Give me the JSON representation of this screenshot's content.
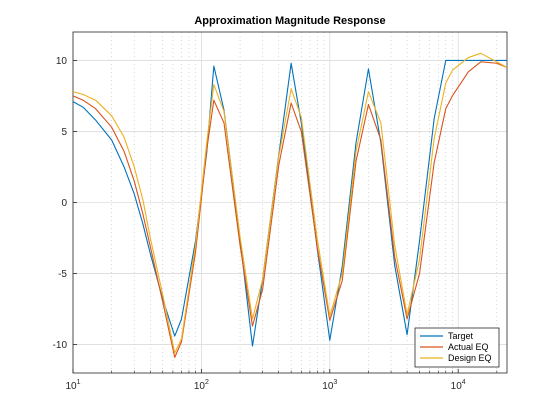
{
  "chart_data": {
    "type": "line",
    "title": "Approximation Magnitude Response",
    "xlabel": "",
    "ylabel": "",
    "xscale": "log",
    "xlim": [
      10,
      24000
    ],
    "ylim": [
      -12,
      12
    ],
    "grid": true,
    "legend_position": "bottom-right",
    "x_ticks": [
      {
        "value": 10,
        "base": "10",
        "exp": "1"
      },
      {
        "value": 100,
        "base": "10",
        "exp": "2"
      },
      {
        "value": 1000,
        "base": "10",
        "exp": "3"
      },
      {
        "value": 10000,
        "base": "10",
        "exp": "4"
      }
    ],
    "y_ticks": [
      {
        "value": -10,
        "label": "-10"
      },
      {
        "value": -5,
        "label": "-5"
      },
      {
        "value": 0,
        "label": "0"
      },
      {
        "value": 5,
        "label": "5"
      },
      {
        "value": 10,
        "label": "10"
      }
    ],
    "series": [
      {
        "name": "Target",
        "color": "#0072BD",
        "points": [
          [
            10,
            7.1
          ],
          [
            12,
            6.7
          ],
          [
            15,
            5.8
          ],
          [
            20,
            4.4
          ],
          [
            25,
            2.5
          ],
          [
            30,
            0.6
          ],
          [
            35,
            -1.5
          ],
          [
            40,
            -3.6
          ],
          [
            50,
            -6.8
          ],
          [
            62,
            -9.4
          ],
          [
            70,
            -8.2
          ],
          [
            90,
            -2.7
          ],
          [
            110,
            3.5
          ],
          [
            125,
            9.6
          ],
          [
            150,
            6.5
          ],
          [
            200,
            -2.6
          ],
          [
            250,
            -10.1
          ],
          [
            300,
            -5.4
          ],
          [
            400,
            3.3
          ],
          [
            500,
            9.8
          ],
          [
            600,
            5.6
          ],
          [
            800,
            -3.3
          ],
          [
            1000,
            -9.7
          ],
          [
            1250,
            -4.5
          ],
          [
            1600,
            4.2
          ],
          [
            2000,
            9.4
          ],
          [
            2500,
            4.2
          ],
          [
            3200,
            -4.4
          ],
          [
            4000,
            -9.3
          ],
          [
            5000,
            -2.7
          ],
          [
            6500,
            5.9
          ],
          [
            8000,
            10.0
          ],
          [
            9000,
            10.0
          ],
          [
            12000,
            10.0
          ],
          [
            15000,
            10.0
          ],
          [
            20000,
            10.0
          ],
          [
            24000,
            10.0
          ]
        ]
      },
      {
        "name": "Actual EQ",
        "color": "#D95319",
        "points": [
          [
            10,
            7.5
          ],
          [
            12,
            7.2
          ],
          [
            15,
            6.6
          ],
          [
            20,
            5.3
          ],
          [
            25,
            3.6
          ],
          [
            30,
            1.5
          ],
          [
            35,
            -0.8
          ],
          [
            40,
            -3.1
          ],
          [
            50,
            -7.0
          ],
          [
            62,
            -10.9
          ],
          [
            70,
            -9.8
          ],
          [
            90,
            -3.5
          ],
          [
            110,
            3.7
          ],
          [
            125,
            7.2
          ],
          [
            150,
            5.6
          ],
          [
            200,
            -3.0
          ],
          [
            250,
            -8.7
          ],
          [
            300,
            -6.1
          ],
          [
            400,
            2.6
          ],
          [
            500,
            7.0
          ],
          [
            600,
            5.0
          ],
          [
            800,
            -3.2
          ],
          [
            1000,
            -8.3
          ],
          [
            1250,
            -5.5
          ],
          [
            1600,
            2.9
          ],
          [
            2000,
            6.9
          ],
          [
            2500,
            4.4
          ],
          [
            3200,
            -3.8
          ],
          [
            4000,
            -8.2
          ],
          [
            5000,
            -5.0
          ],
          [
            6500,
            2.8
          ],
          [
            8000,
            6.6
          ],
          [
            9000,
            7.5
          ],
          [
            12000,
            9.2
          ],
          [
            15000,
            9.9
          ],
          [
            20000,
            9.8
          ],
          [
            24000,
            9.5
          ]
        ]
      },
      {
        "name": "Design EQ",
        "color": "#EDB120",
        "points": [
          [
            10,
            7.8
          ],
          [
            12,
            7.6
          ],
          [
            15,
            7.2
          ],
          [
            20,
            6.1
          ],
          [
            25,
            4.6
          ],
          [
            30,
            2.5
          ],
          [
            35,
            0.2
          ],
          [
            40,
            -2.5
          ],
          [
            50,
            -6.5
          ],
          [
            62,
            -10.6
          ],
          [
            70,
            -9.6
          ],
          [
            90,
            -3.0
          ],
          [
            110,
            4.2
          ],
          [
            125,
            8.3
          ],
          [
            150,
            6.4
          ],
          [
            200,
            -2.4
          ],
          [
            250,
            -8.2
          ],
          [
            300,
            -5.4
          ],
          [
            400,
            3.2
          ],
          [
            500,
            8.0
          ],
          [
            600,
            6.0
          ],
          [
            800,
            -2.6
          ],
          [
            1000,
            -8.0
          ],
          [
            1250,
            -5.0
          ],
          [
            1600,
            3.6
          ],
          [
            2000,
            7.8
          ],
          [
            2500,
            5.6
          ],
          [
            3200,
            -3.0
          ],
          [
            4000,
            -7.9
          ],
          [
            5000,
            -4.0
          ],
          [
            6500,
            4.5
          ],
          [
            8000,
            8.4
          ],
          [
            9000,
            9.3
          ],
          [
            12000,
            10.2
          ],
          [
            15000,
            10.5
          ],
          [
            20000,
            9.9
          ],
          [
            24000,
            9.5
          ]
        ]
      }
    ]
  }
}
